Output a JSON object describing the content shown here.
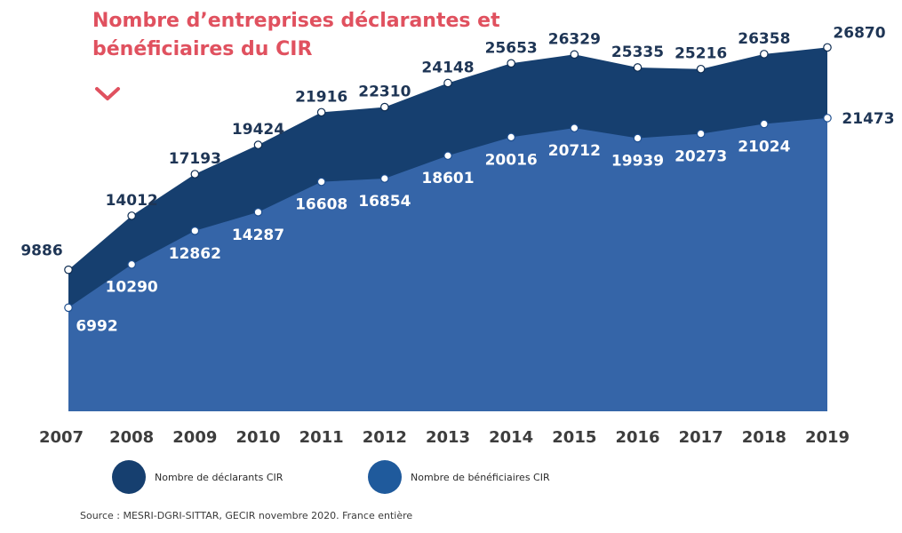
{
  "title": "Nombre d’entreprises déclarantes et bénéficiaires du CIR",
  "chart_data": {
    "type": "area",
    "x": [
      "2007",
      "2008",
      "2009",
      "2010",
      "2011",
      "2012",
      "2013",
      "2014",
      "2015",
      "2016",
      "2017",
      "2018",
      "2019"
    ],
    "series": [
      {
        "name": "Nombre de déclarants CIR",
        "color": "#163f6f",
        "values": [
          9886,
          14012,
          17193,
          19424,
          21916,
          22310,
          24148,
          25653,
          26329,
          25335,
          25216,
          26358,
          26870
        ]
      },
      {
        "name": "Nombre de bénéficiaires CIR",
        "color": "#3565a8",
        "values": [
          6992,
          10290,
          12862,
          14287,
          16608,
          16854,
          18601,
          20016,
          20712,
          19939,
          20273,
          21024,
          21473
        ]
      }
    ]
  },
  "legend": {
    "declarants": {
      "label": "Nombre de déclarants CIR",
      "color": "#163f6f"
    },
    "beneficiaires": {
      "label": "Nombre de bénéficiaires CIR",
      "color": "#1f5a9c"
    }
  },
  "source": "Source : MESRI-DGRI-SITTAR, GECIR novembre 2020. France entière",
  "colors": {
    "title": "#e0515f",
    "label_dark": "#1e3555",
    "label_light": "#ffffff",
    "axis_text": "#3d3d3d"
  }
}
